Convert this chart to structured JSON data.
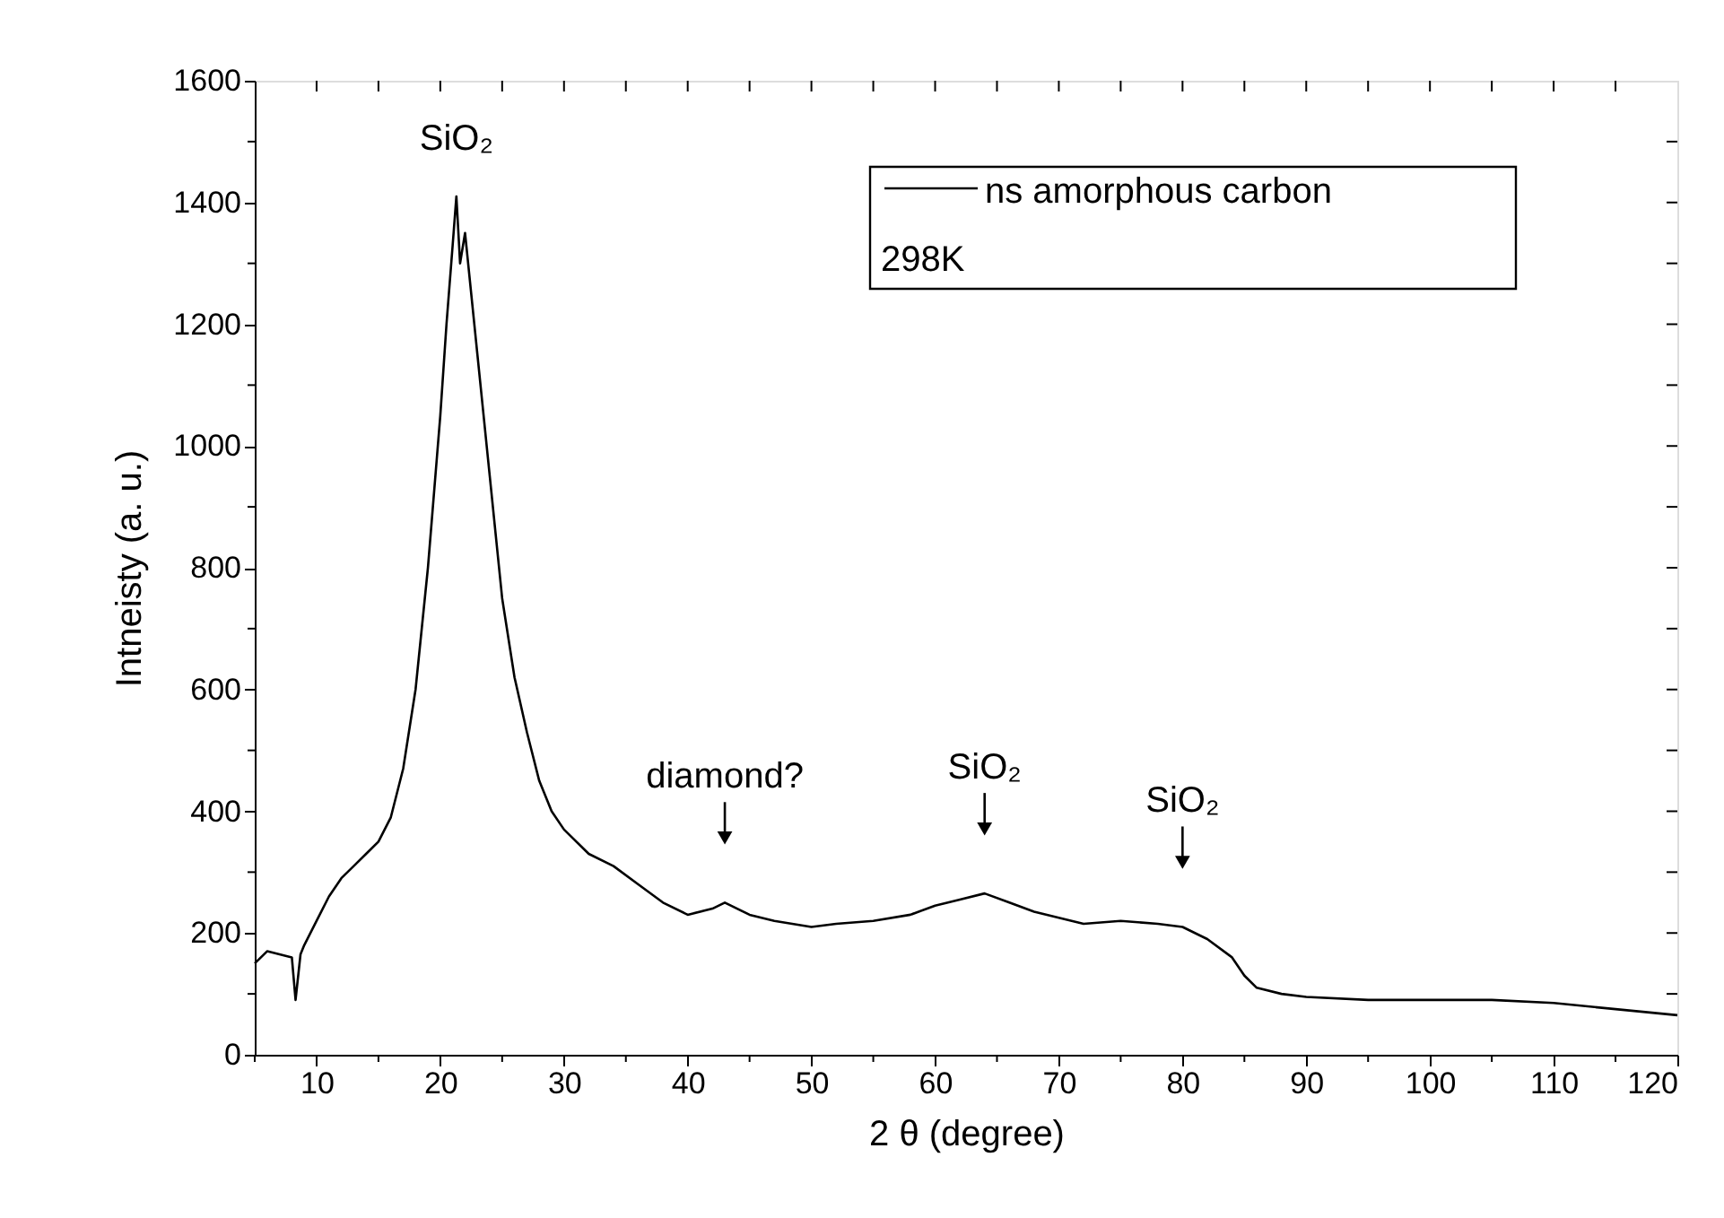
{
  "chart_data": {
    "type": "line",
    "xlabel": "2 θ (degree)",
    "ylabel": "Intneisty (a. u.)",
    "x": [
      5,
      6,
      7,
      8,
      8.3,
      8.7,
      9,
      10,
      11,
      12,
      13,
      14,
      15,
      16,
      17,
      18,
      19,
      20,
      20.5,
      21,
      21.3,
      21.6,
      22,
      23,
      24,
      25,
      26,
      27,
      28,
      29,
      30,
      32,
      34,
      36,
      38,
      40,
      42,
      43,
      45,
      47,
      50,
      52,
      55,
      58,
      60,
      62,
      64,
      66,
      68,
      70,
      72,
      75,
      78,
      80,
      82,
      84,
      85,
      86,
      88,
      90,
      95,
      100,
      105,
      110,
      115,
      120
    ],
    "series": [
      {
        "name": "ns amorphous carbon",
        "color": "#000000",
        "values": [
          150,
          170,
          165,
          160,
          90,
          165,
          180,
          220,
          260,
          290,
          310,
          330,
          350,
          390,
          470,
          600,
          800,
          1050,
          1200,
          1330,
          1410,
          1300,
          1350,
          1150,
          950,
          750,
          620,
          530,
          450,
          400,
          370,
          330,
          310,
          280,
          250,
          230,
          240,
          250,
          230,
          220,
          210,
          215,
          220,
          230,
          245,
          255,
          265,
          250,
          235,
          225,
          215,
          220,
          215,
          210,
          190,
          160,
          130,
          110,
          100,
          95,
          90,
          90,
          90,
          85,
          75,
          65
        ]
      }
    ],
    "xlim": [
      5,
      120
    ],
    "xticks": [
      {
        "value": 5,
        "label": null
      },
      10,
      {
        "value": 15,
        "label": null
      },
      20,
      {
        "value": 25,
        "label": null
      },
      30,
      {
        "value": 35,
        "label": null
      },
      40,
      {
        "value": 45,
        "label": null
      },
      50,
      {
        "value": 55,
        "label": null
      },
      60,
      {
        "value": 65,
        "label": null
      },
      70,
      {
        "value": 75,
        "label": null
      },
      80,
      {
        "value": 85,
        "label": null
      },
      90,
      {
        "value": 95,
        "label": null
      },
      100,
      {
        "value": 105,
        "label": null
      },
      110,
      {
        "value": 115,
        "label": null
      },
      120
    ],
    "ylim": [
      0,
      1600
    ],
    "yticks": [
      0,
      {
        "value": 100,
        "label": null
      },
      200,
      {
        "value": 300,
        "label": null
      },
      400,
      {
        "value": 500,
        "label": null
      },
      600,
      {
        "value": 700,
        "label": null
      },
      800,
      {
        "value": 900,
        "label": null
      },
      1000,
      {
        "value": 1100,
        "label": null
      },
      1200,
      {
        "value": 1300,
        "label": null
      },
      1400,
      {
        "value": 1500,
        "label": null
      },
      1600
    ],
    "annotations": [
      {
        "text": "SiO₂",
        "x": 21.3,
        "y": 1410
      },
      {
        "text": "diamond?",
        "x": 43,
        "y": 250
      },
      {
        "text": "SiO₂",
        "x": 64,
        "y": 265
      },
      {
        "text": "SiO₂",
        "x": 80,
        "y": 210
      },
      "298K"
    ],
    "legend": "top right",
    "grid": false,
    "marker": "none",
    "line_style": "solid"
  }
}
